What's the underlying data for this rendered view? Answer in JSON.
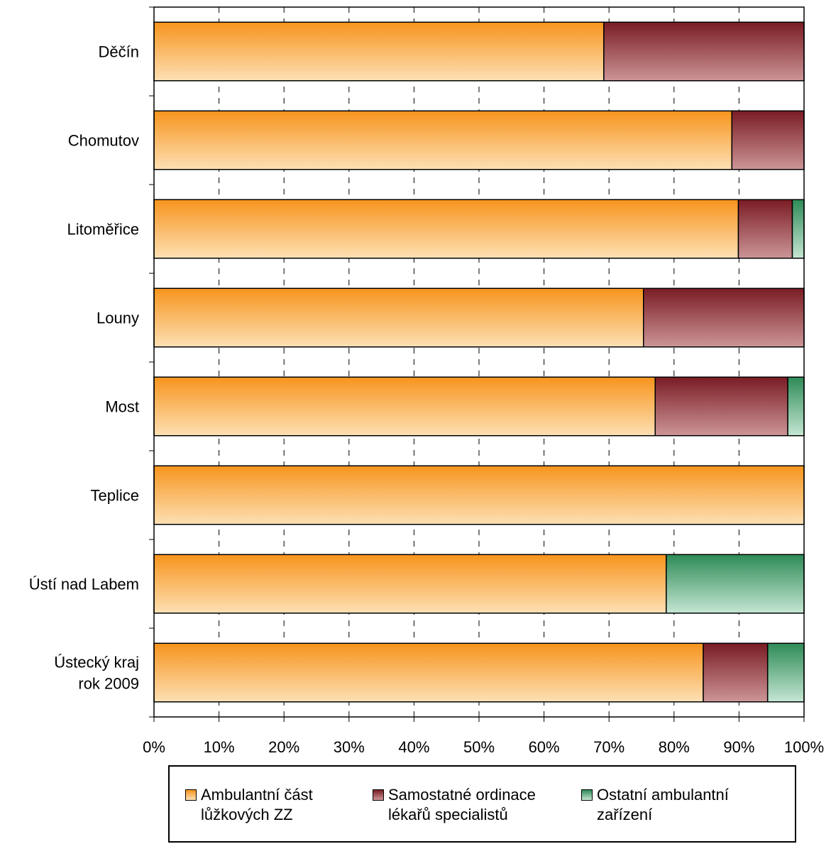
{
  "chart_data": {
    "type": "bar",
    "orientation": "horizontal",
    "stacked": "percent",
    "categories": [
      "Děčín",
      "Chomutov",
      "Litoměřice",
      "Louny",
      "Most",
      "Teplice",
      "Ústí nad Labem",
      "Ústecký kraj\nrok  2009"
    ],
    "series": [
      {
        "name": "Ambulantní část\nlůžkových ZZ",
        "color": "#f7941d",
        "values": [
          69.2,
          88.9,
          89.9,
          75.3,
          77.1,
          100,
          78.8,
          84.5
        ]
      },
      {
        "name": "Samostatné ordinace\nlékařů specialistů",
        "color": "#7a1c24",
        "values": [
          30.8,
          11.1,
          8.3,
          24.7,
          20.4,
          0,
          0,
          9.9
        ]
      },
      {
        "name": "Ostatní ambulantní\nzařízení",
        "color": "#2e8b57",
        "values": [
          0,
          0,
          1.8,
          0,
          2.5,
          0,
          21.2,
          5.6
        ]
      }
    ],
    "xlim": [
      0,
      100
    ],
    "xticks": [
      "0%",
      "10%",
      "20%",
      "30%",
      "40%",
      "50%",
      "60%",
      "70%",
      "80%",
      "90%",
      "100%"
    ],
    "grid": "vertical dashed",
    "legend_position": "bottom",
    "title": "",
    "xlabel": "",
    "ylabel": ""
  }
}
